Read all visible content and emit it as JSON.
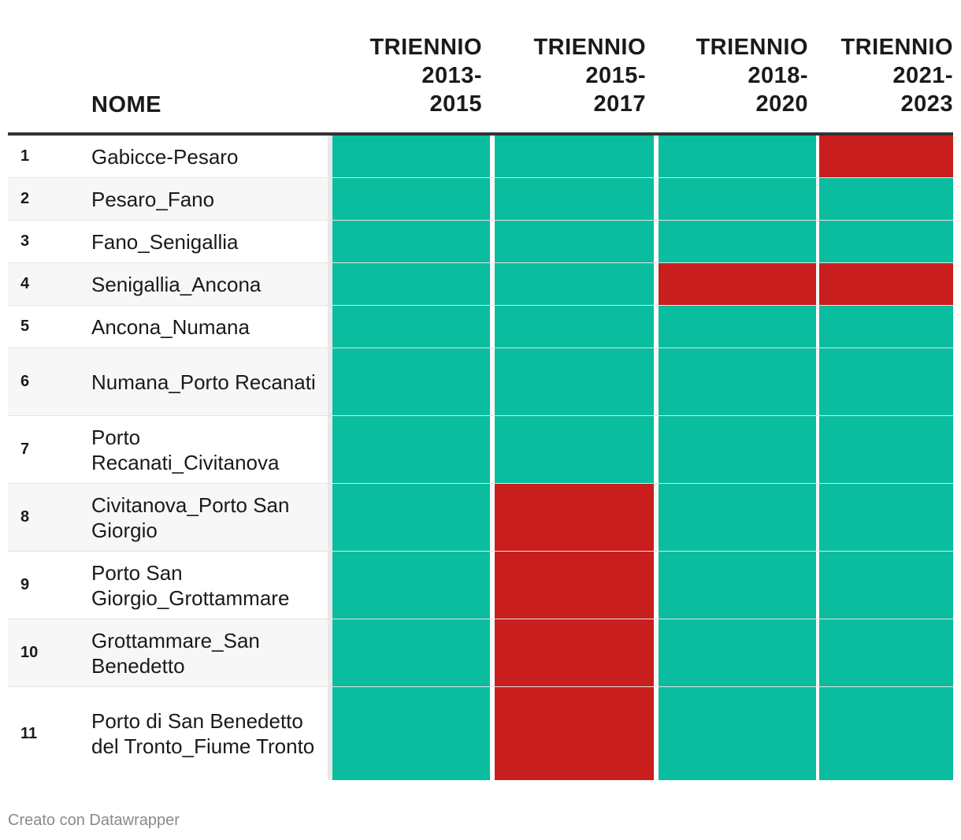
{
  "chart_data": {
    "type": "table",
    "title": "",
    "header": {
      "name_label": "NOME",
      "columns": [
        "TRIENNIO\n2013-\n2015",
        "TRIENNIO\n2015-\n2017",
        "TRIENNIO\n2018-\n2020",
        "TRIENNIO\n2021-\n2023"
      ]
    },
    "status_colors": {
      "ok": "#0abd9f",
      "bad": "#c91e1e"
    },
    "rows": [
      {
        "rank": "1",
        "name": "Gabicce-Pesaro",
        "status": [
          "ok",
          "ok",
          "ok",
          "bad"
        ]
      },
      {
        "rank": "2",
        "name": "Pesaro_Fano",
        "status": [
          "ok",
          "ok",
          "ok",
          "ok"
        ]
      },
      {
        "rank": "3",
        "name": "Fano_Senigallia",
        "status": [
          "ok",
          "ok",
          "ok",
          "ok"
        ]
      },
      {
        "rank": "4",
        "name": "Senigallia_Ancona",
        "status": [
          "ok",
          "ok",
          "bad",
          "bad"
        ]
      },
      {
        "rank": "5",
        "name": "Ancona_Numana",
        "status": [
          "ok",
          "ok",
          "ok",
          "ok"
        ]
      },
      {
        "rank": "6",
        "name": "Numana_Porto Recanati",
        "status": [
          "ok",
          "ok",
          "ok",
          "ok"
        ]
      },
      {
        "rank": "7",
        "name": "Porto Recanati_Civitanova",
        "status": [
          "ok",
          "ok",
          "ok",
          "ok"
        ]
      },
      {
        "rank": "8",
        "name": "Civitanova_Porto San Giorgio",
        "status": [
          "ok",
          "bad",
          "ok",
          "ok"
        ]
      },
      {
        "rank": "9",
        "name": "Porto San Giorgio_Grottammare",
        "status": [
          "ok",
          "bad",
          "ok",
          "ok"
        ]
      },
      {
        "rank": "10",
        "name": "Grottammare_San Benedetto",
        "status": [
          "ok",
          "bad",
          "ok",
          "ok"
        ]
      },
      {
        "rank": "11",
        "name": "Porto di San Benedetto del Tronto_Fiume Tronto",
        "status": [
          "ok",
          "bad",
          "ok",
          "ok"
        ]
      }
    ]
  },
  "footer": {
    "credit": "Creato con Datawrapper"
  }
}
